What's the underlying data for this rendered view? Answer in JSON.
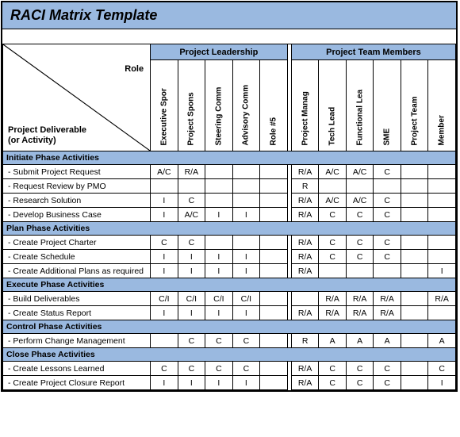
{
  "title": "RACI Matrix Template",
  "corner": {
    "role": "Role",
    "deliverable": "Project Deliverable (or Activity)"
  },
  "colors": {
    "header_bg": "#9ab9e0",
    "border": "#000000",
    "bg": "#ffffff"
  },
  "groups": [
    {
      "label": "Project Leadership",
      "span": 5
    },
    {
      "label": "Project Team Members",
      "span": 6
    }
  ],
  "roles": [
    "Executive Spor",
    "Project Spons",
    "Steering Comm",
    "Advisory Comm",
    "Role #5",
    "Project Manag",
    "Tech Lead",
    "Functional Lea",
    "SME",
    "Project Team",
    "Member"
  ],
  "phases": [
    {
      "name": "Initiate Phase Activities",
      "rows": [
        {
          "label": " - Submit Project Request",
          "cells": [
            "A/C",
            "R/A",
            "",
            "",
            "",
            "R/A",
            "A/C",
            "A/C",
            "C",
            "",
            ""
          ]
        },
        {
          "label": " - Request Review by PMO",
          "cells": [
            "",
            "",
            "",
            "",
            "",
            "R",
            "",
            "",
            "",
            "",
            ""
          ]
        },
        {
          "label": " - Research Solution",
          "cells": [
            "I",
            "C",
            "",
            "",
            "",
            "R/A",
            "A/C",
            "A/C",
            "C",
            "",
            ""
          ]
        },
        {
          "label": " - Develop Business Case",
          "cells": [
            "I",
            "A/C",
            "I",
            "I",
            "",
            "R/A",
            "C",
            "C",
            "C",
            "",
            ""
          ]
        }
      ]
    },
    {
      "name": "Plan Phase Activities",
      "rows": [
        {
          "label": " - Create Project Charter",
          "cells": [
            "C",
            "C",
            "",
            "",
            "",
            "R/A",
            "C",
            "C",
            "C",
            "",
            ""
          ]
        },
        {
          "label": " - Create Schedule",
          "cells": [
            "I",
            "I",
            "I",
            "I",
            "",
            "R/A",
            "C",
            "C",
            "C",
            "",
            ""
          ]
        },
        {
          "label": " - Create Additional Plans as required",
          "cells": [
            "I",
            "I",
            "I",
            "I",
            "",
            "R/A",
            "",
            "",
            "",
            "",
            "I"
          ]
        }
      ]
    },
    {
      "name": "Execute Phase Activities",
      "rows": [
        {
          "label": " - Build Deliverables",
          "cells": [
            "C/I",
            "C/I",
            "C/I",
            "C/I",
            "",
            "",
            "R/A",
            "R/A",
            "R/A",
            "",
            "R/A"
          ]
        },
        {
          "label": " - Create Status Report",
          "cells": [
            "I",
            "I",
            "I",
            "I",
            "",
            "R/A",
            "R/A",
            "R/A",
            "R/A",
            "",
            ""
          ]
        }
      ]
    },
    {
      "name": "Control Phase Activities",
      "rows": [
        {
          "label": " - Perform Change Management",
          "cells": [
            "",
            "C",
            "C",
            "C",
            "",
            "R",
            "A",
            "A",
            "A",
            "",
            "A"
          ]
        }
      ]
    },
    {
      "name": "Close Phase Activities",
      "rows": [
        {
          "label": " - Create Lessons Learned",
          "cells": [
            "C",
            "C",
            "C",
            "C",
            "",
            "R/A",
            "C",
            "C",
            "C",
            "",
            "C"
          ]
        },
        {
          "label": " - Create Project Closure Report",
          "cells": [
            "I",
            "I",
            "I",
            "I",
            "",
            "R/A",
            "C",
            "C",
            "C",
            "",
            "I"
          ]
        }
      ]
    }
  ]
}
